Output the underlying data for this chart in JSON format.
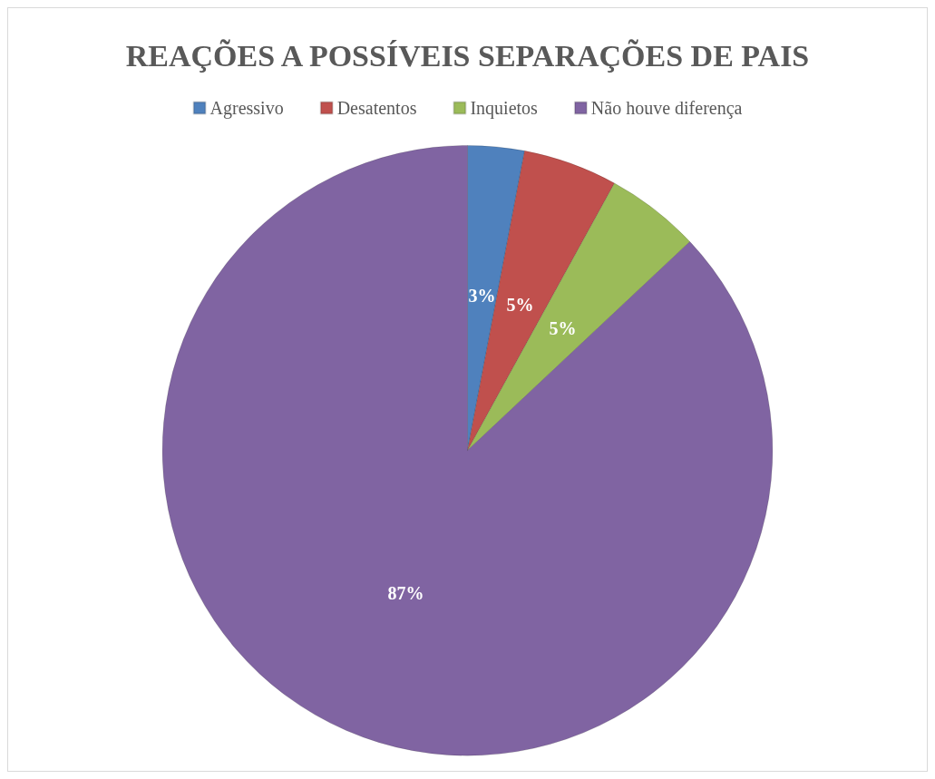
{
  "chart_data": {
    "type": "pie",
    "title": "REAÇÕES A POSSÍVEIS SEPARAÇÕES DE PAIS",
    "categories": [
      "Agressivo",
      "Desatentos",
      "Inquietos",
      "Não houve diferença"
    ],
    "values": [
      3,
      5,
      5,
      87
    ],
    "colors": [
      "#4f81bd",
      "#c0504d",
      "#9bbb59",
      "#8064a2"
    ],
    "value_labels": [
      "3%",
      "5%",
      "5%",
      "87%"
    ],
    "legend": "top"
  }
}
